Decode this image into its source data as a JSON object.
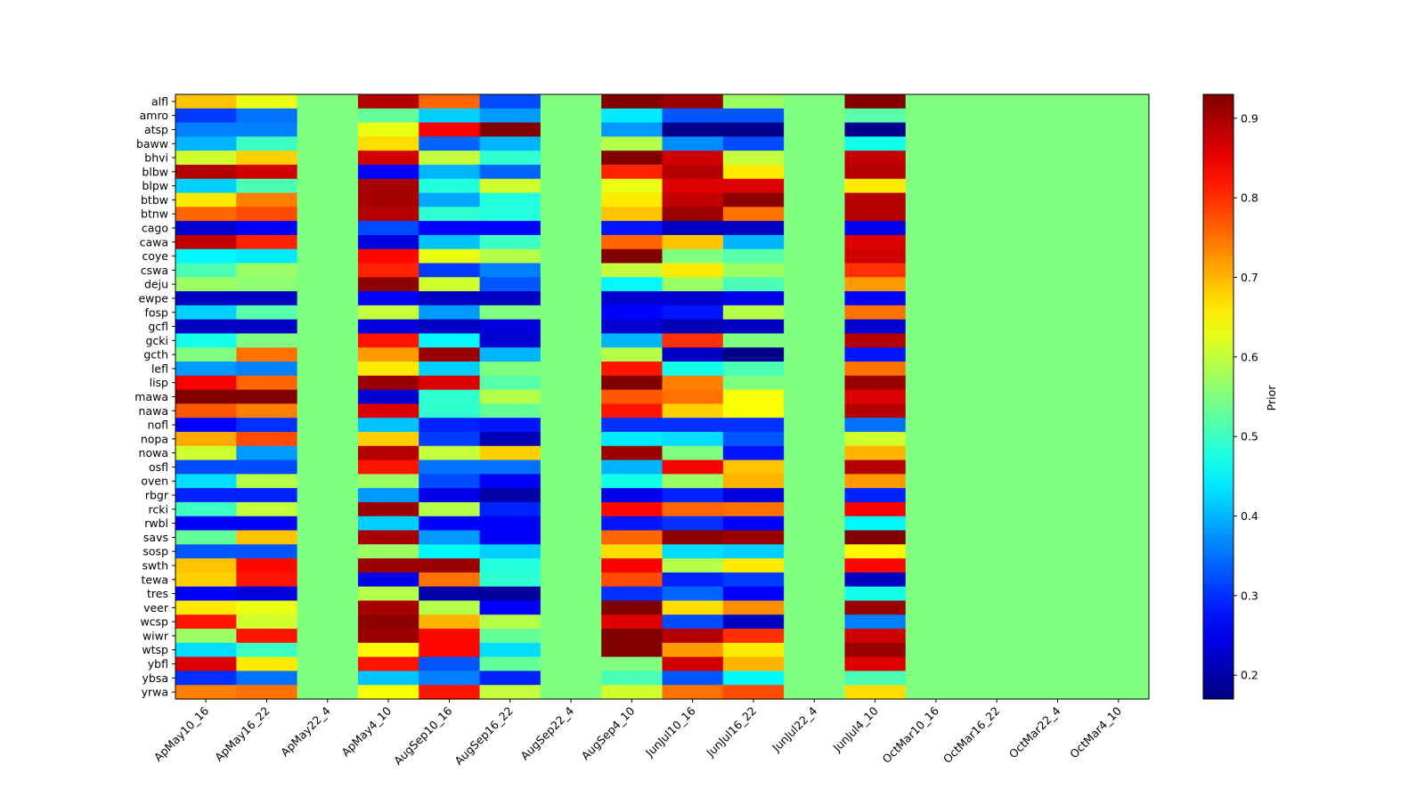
{
  "chart_data": {
    "type": "heatmap",
    "title": "",
    "xlabel": "",
    "ylabel": "",
    "colormap": "jet",
    "colorbar": {
      "label": "Prior",
      "range": [
        0.17,
        0.93
      ],
      "ticks": [
        "0.2",
        "0.3",
        "0.4",
        "0.5",
        "0.6",
        "0.7",
        "0.8",
        "0.9"
      ]
    },
    "columns": [
      "ApMay10_16",
      "ApMay16_22",
      "ApMay22_4",
      "ApMay4_10",
      "AugSep10_16",
      "AugSep16_22",
      "AugSep22_4",
      "AugSep4_10",
      "JunJul10_16",
      "JunJul16_22",
      "JunJul22_4",
      "JunJul4_10",
      "OctMar10_16",
      "OctMar16_22",
      "OctMar22_4",
      "OctMar4_10"
    ],
    "rows": [
      "alfl",
      "amro",
      "atsp",
      "baww",
      "bhvi",
      "blbw",
      "blpw",
      "btbw",
      "btnw",
      "cago",
      "cawa",
      "coye",
      "cswa",
      "deju",
      "ewpe",
      "fosp",
      "gcfl",
      "gcki",
      "gcth",
      "lefl",
      "lisp",
      "mawa",
      "nawa",
      "nofl",
      "nopa",
      "nowa",
      "osfl",
      "oven",
      "rbgr",
      "rcki",
      "rwbl",
      "savs",
      "sosp",
      "swth",
      "tewa",
      "tres",
      "veer",
      "wcsp",
      "wiwr",
      "wtsp",
      "ybfl",
      "ybsa",
      "yrwa"
    ],
    "values": [
      [
        0.69,
        0.63,
        0.55,
        0.89,
        0.76,
        0.32,
        0.55,
        0.93,
        0.91,
        0.57,
        0.55,
        0.93,
        0.55,
        0.55,
        0.55,
        0.55
      ],
      [
        0.31,
        0.35,
        0.55,
        0.53,
        0.42,
        0.38,
        0.55,
        0.44,
        0.33,
        0.33,
        0.55,
        0.52,
        0.55,
        0.55,
        0.55,
        0.55
      ],
      [
        0.36,
        0.36,
        0.55,
        0.63,
        0.84,
        0.93,
        0.55,
        0.38,
        0.18,
        0.18,
        0.55,
        0.18,
        0.55,
        0.55,
        0.55,
        0.55
      ],
      [
        0.4,
        0.5,
        0.55,
        0.67,
        0.34,
        0.4,
        0.55,
        0.59,
        0.37,
        0.32,
        0.55,
        0.47,
        0.55,
        0.55,
        0.55,
        0.55
      ],
      [
        0.61,
        0.68,
        0.55,
        0.87,
        0.6,
        0.49,
        0.55,
        0.93,
        0.87,
        0.6,
        0.55,
        0.88,
        0.55,
        0.55,
        0.55,
        0.55
      ],
      [
        0.89,
        0.87,
        0.55,
        0.265,
        0.4,
        0.34,
        0.55,
        0.81,
        0.89,
        0.66,
        0.55,
        0.89,
        0.55,
        0.55,
        0.55,
        0.55
      ],
      [
        0.42,
        0.51,
        0.55,
        0.9,
        0.48,
        0.61,
        0.55,
        0.63,
        0.86,
        0.86,
        0.55,
        0.66,
        0.55,
        0.55,
        0.55,
        0.55
      ],
      [
        0.66,
        0.74,
        0.55,
        0.9,
        0.39,
        0.48,
        0.55,
        0.66,
        0.88,
        0.92,
        0.55,
        0.89,
        0.55,
        0.55,
        0.55,
        0.55
      ],
      [
        0.76,
        0.78,
        0.55,
        0.89,
        0.49,
        0.48,
        0.55,
        0.69,
        0.91,
        0.75,
        0.55,
        0.89,
        0.55,
        0.55,
        0.55,
        0.55
      ],
      [
        0.23,
        0.26,
        0.55,
        0.32,
        0.26,
        0.265,
        0.55,
        0.28,
        0.22,
        0.22,
        0.55,
        0.25,
        0.55,
        0.55,
        0.55,
        0.55
      ],
      [
        0.88,
        0.81,
        0.55,
        0.24,
        0.41,
        0.5,
        0.55,
        0.76,
        0.69,
        0.4,
        0.55,
        0.86,
        0.55,
        0.55,
        0.55,
        0.55
      ],
      [
        0.45,
        0.44,
        0.55,
        0.83,
        0.63,
        0.59,
        0.55,
        0.93,
        0.55,
        0.52,
        0.55,
        0.87,
        0.55,
        0.55,
        0.55,
        0.55
      ],
      [
        0.51,
        0.57,
        0.55,
        0.81,
        0.31,
        0.36,
        0.55,
        0.6,
        0.66,
        0.57,
        0.55,
        0.8,
        0.55,
        0.55,
        0.55,
        0.55
      ],
      [
        0.57,
        0.56,
        0.55,
        0.92,
        0.61,
        0.33,
        0.55,
        0.45,
        0.57,
        0.51,
        0.55,
        0.72,
        0.55,
        0.55,
        0.55,
        0.55
      ],
      [
        0.22,
        0.22,
        0.55,
        0.265,
        0.22,
        0.22,
        0.55,
        0.23,
        0.23,
        0.25,
        0.55,
        0.265,
        0.55,
        0.55,
        0.55,
        0.55
      ],
      [
        0.42,
        0.52,
        0.55,
        0.6,
        0.38,
        0.55,
        0.55,
        0.265,
        0.28,
        0.59,
        0.55,
        0.75,
        0.55,
        0.55,
        0.55,
        0.55
      ],
      [
        0.22,
        0.22,
        0.55,
        0.24,
        0.22,
        0.24,
        0.55,
        0.23,
        0.21,
        0.22,
        0.55,
        0.23,
        0.55,
        0.55,
        0.55,
        0.55
      ],
      [
        0.47,
        0.55,
        0.55,
        0.82,
        0.45,
        0.23,
        0.55,
        0.4,
        0.8,
        0.55,
        0.55,
        0.89,
        0.55,
        0.55,
        0.55,
        0.55
      ],
      [
        0.55,
        0.75,
        0.55,
        0.72,
        0.91,
        0.4,
        0.55,
        0.59,
        0.22,
        0.18,
        0.55,
        0.28,
        0.55,
        0.55,
        0.55,
        0.55
      ],
      [
        0.38,
        0.36,
        0.55,
        0.66,
        0.42,
        0.55,
        0.55,
        0.82,
        0.47,
        0.51,
        0.55,
        0.75,
        0.55,
        0.55,
        0.55,
        0.55
      ],
      [
        0.84,
        0.76,
        0.55,
        0.91,
        0.86,
        0.52,
        0.55,
        0.93,
        0.74,
        0.55,
        0.55,
        0.91,
        0.55,
        0.55,
        0.55,
        0.55
      ],
      [
        0.93,
        0.93,
        0.55,
        0.23,
        0.49,
        0.59,
        0.55,
        0.77,
        0.75,
        0.64,
        0.55,
        0.86,
        0.55,
        0.55,
        0.55,
        0.55
      ],
      [
        0.77,
        0.74,
        0.55,
        0.86,
        0.49,
        0.53,
        0.55,
        0.82,
        0.68,
        0.64,
        0.55,
        0.89,
        0.55,
        0.55,
        0.55,
        0.55
      ],
      [
        0.265,
        0.3,
        0.55,
        0.41,
        0.29,
        0.28,
        0.55,
        0.3,
        0.3,
        0.3,
        0.55,
        0.35,
        0.55,
        0.55,
        0.55,
        0.55
      ],
      [
        0.71,
        0.78,
        0.55,
        0.68,
        0.31,
        0.21,
        0.55,
        0.44,
        0.43,
        0.33,
        0.55,
        0.61,
        0.55,
        0.55,
        0.55,
        0.55
      ],
      [
        0.61,
        0.38,
        0.55,
        0.89,
        0.6,
        0.68,
        0.55,
        0.91,
        0.55,
        0.28,
        0.55,
        0.7,
        0.55,
        0.55,
        0.55,
        0.55
      ],
      [
        0.32,
        0.32,
        0.55,
        0.82,
        0.35,
        0.35,
        0.55,
        0.4,
        0.84,
        0.69,
        0.55,
        0.89,
        0.55,
        0.55,
        0.55,
        0.55
      ],
      [
        0.43,
        0.59,
        0.55,
        0.57,
        0.32,
        0.26,
        0.55,
        0.47,
        0.57,
        0.7,
        0.55,
        0.72,
        0.55,
        0.55,
        0.55,
        0.55
      ],
      [
        0.29,
        0.29,
        0.55,
        0.38,
        0.25,
        0.2,
        0.55,
        0.25,
        0.29,
        0.24,
        0.55,
        0.29,
        0.55,
        0.55,
        0.55,
        0.55
      ],
      [
        0.5,
        0.6,
        0.55,
        0.91,
        0.59,
        0.29,
        0.55,
        0.83,
        0.76,
        0.75,
        0.55,
        0.84,
        0.55,
        0.55,
        0.55,
        0.55
      ],
      [
        0.265,
        0.265,
        0.55,
        0.42,
        0.265,
        0.26,
        0.55,
        0.28,
        0.3,
        0.265,
        0.55,
        0.45,
        0.55,
        0.55,
        0.55,
        0.55
      ],
      [
        0.53,
        0.69,
        0.55,
        0.9,
        0.38,
        0.26,
        0.55,
        0.76,
        0.92,
        0.91,
        0.55,
        0.93,
        0.55,
        0.55,
        0.55,
        0.55
      ],
      [
        0.33,
        0.33,
        0.55,
        0.57,
        0.45,
        0.42,
        0.55,
        0.67,
        0.43,
        0.42,
        0.55,
        0.65,
        0.55,
        0.55,
        0.55,
        0.55
      ],
      [
        0.69,
        0.83,
        0.55,
        0.91,
        0.91,
        0.48,
        0.55,
        0.84,
        0.59,
        0.66,
        0.55,
        0.83,
        0.55,
        0.55,
        0.55,
        0.55
      ],
      [
        0.68,
        0.82,
        0.55,
        0.25,
        0.75,
        0.49,
        0.55,
        0.78,
        0.29,
        0.31,
        0.55,
        0.22,
        0.55,
        0.55,
        0.55,
        0.55
      ],
      [
        0.26,
        0.24,
        0.55,
        0.59,
        0.2,
        0.19,
        0.55,
        0.3,
        0.34,
        0.26,
        0.55,
        0.47,
        0.55,
        0.55,
        0.55,
        0.55
      ],
      [
        0.66,
        0.63,
        0.55,
        0.9,
        0.59,
        0.265,
        0.55,
        0.93,
        0.67,
        0.73,
        0.55,
        0.91,
        0.55,
        0.55,
        0.55,
        0.55
      ],
      [
        0.82,
        0.61,
        0.55,
        0.92,
        0.7,
        0.59,
        0.55,
        0.86,
        0.32,
        0.22,
        0.55,
        0.36,
        0.55,
        0.55,
        0.55,
        0.55
      ],
      [
        0.57,
        0.82,
        0.55,
        0.91,
        0.83,
        0.53,
        0.55,
        0.93,
        0.89,
        0.8,
        0.55,
        0.87,
        0.55,
        0.55,
        0.55,
        0.55
      ],
      [
        0.43,
        0.5,
        0.55,
        0.65,
        0.83,
        0.43,
        0.55,
        0.93,
        0.72,
        0.66,
        0.55,
        0.91,
        0.55,
        0.55,
        0.55,
        0.55
      ],
      [
        0.86,
        0.66,
        0.55,
        0.82,
        0.33,
        0.53,
        0.55,
        0.55,
        0.87,
        0.7,
        0.55,
        0.86,
        0.55,
        0.55,
        0.55,
        0.55
      ],
      [
        0.3,
        0.35,
        0.55,
        0.41,
        0.36,
        0.29,
        0.55,
        0.51,
        0.33,
        0.45,
        0.55,
        0.51,
        0.55,
        0.55,
        0.55,
        0.55
      ],
      [
        0.74,
        0.75,
        0.55,
        0.64,
        0.82,
        0.6,
        0.55,
        0.61,
        0.75,
        0.78,
        0.55,
        0.67,
        0.55,
        0.55,
        0.55,
        0.55
      ]
    ]
  }
}
